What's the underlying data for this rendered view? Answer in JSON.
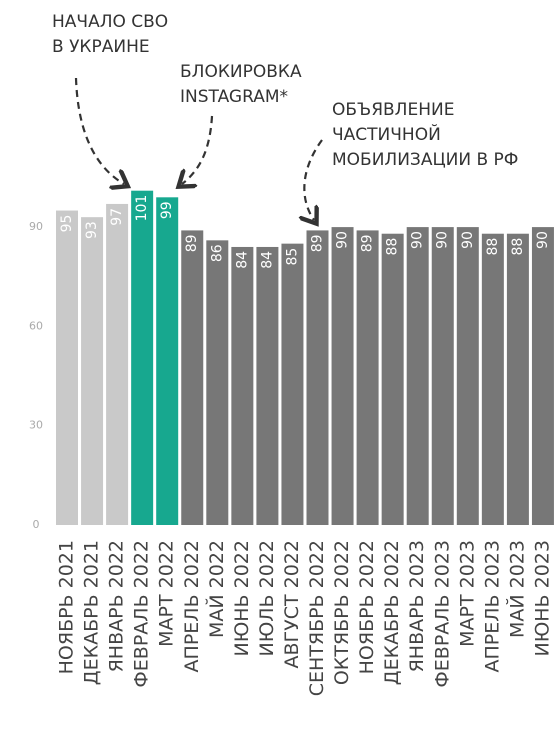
{
  "chart_data": {
    "type": "bar",
    "categories": [
      "НОЯБРЬ 2021",
      "ДЕКАБРЬ 2021",
      "ЯНВАРЬ 2022",
      "ФЕВРАЛЬ 2022",
      "МАРТ 2022",
      "АПРЕЛЬ 2022",
      "МАЙ 2022",
      "ИЮНЬ 2022",
      "ИЮЛЬ 2022",
      "АВГУСТ 2022",
      "СЕНТЯБРЬ 2022",
      "ОКТЯБРЬ 2022",
      "НОЯБРЬ 2022",
      "ДЕКАБРЬ 2022",
      "ЯНВАРЬ 2023",
      "ФЕВРАЛЬ 2023",
      "МАРТ 2023",
      "АПРЕЛЬ 2023",
      "МАЙ 2023",
      "ИЮНЬ 2023"
    ],
    "values": [
      95,
      93,
      97,
      101,
      99,
      89,
      86,
      84,
      84,
      85,
      89,
      90,
      89,
      88,
      90,
      90,
      90,
      88,
      88,
      90
    ],
    "colors": [
      "#c9c9c9",
      "#c9c9c9",
      "#c9c9c9",
      "#17a88f",
      "#17a88f",
      "#777777",
      "#777777",
      "#777777",
      "#777777",
      "#777777",
      "#777777",
      "#777777",
      "#777777",
      "#777777",
      "#777777",
      "#777777",
      "#777777",
      "#777777",
      "#777777",
      "#777777"
    ],
    "ylim": [
      0,
      105
    ],
    "yticks": [
      0,
      30,
      60,
      90
    ],
    "annotations": [
      {
        "lines": [
          "НАЧАЛО СВО",
          "В УКРАИНЕ"
        ]
      },
      {
        "lines": [
          "БЛОКИРОВКА",
          "INSTAGRAM*"
        ]
      },
      {
        "lines": [
          "ОБЪЯВЛЕНИЕ",
          "ЧАСТИЧНОЙ",
          "МОБИЛИЗАЦИИ В РФ"
        ]
      }
    ]
  }
}
